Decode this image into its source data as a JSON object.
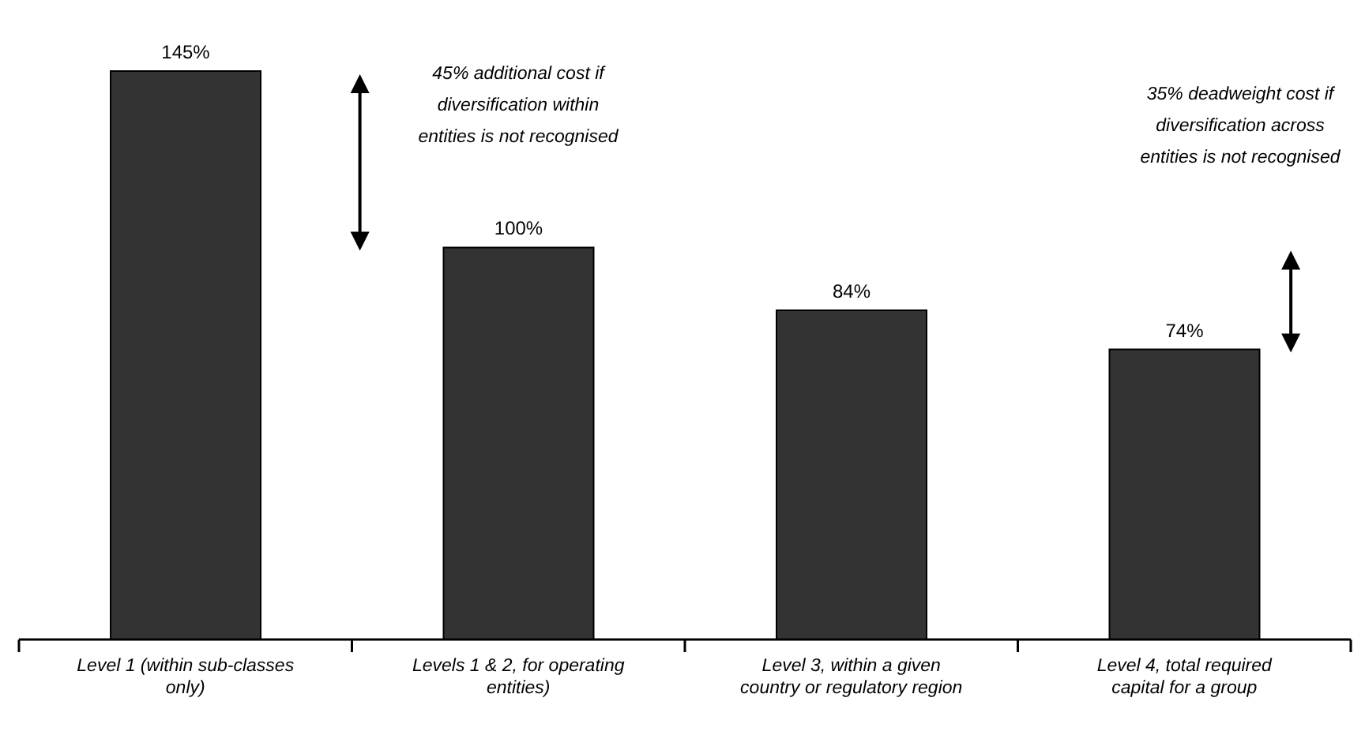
{
  "chart_data": {
    "type": "bar",
    "categories": [
      "Level 1 (within sub-classes only)",
      "Levels 1 & 2, for operating entities)",
      "Level 3, within a given country or regulatory region",
      "Level 4, total required capital for a group"
    ],
    "values": [
      145,
      100,
      84,
      74
    ],
    "color": "#333333",
    "value_labels": [
      "145%",
      "100%",
      "84%",
      "74%"
    ],
    "annotations": [
      "45% additional cost if diversification within entities is not recognised",
      "35% deadweight cost if diversification across entities is not recognised"
    ],
    "grid": false,
    "legend": false
  }
}
